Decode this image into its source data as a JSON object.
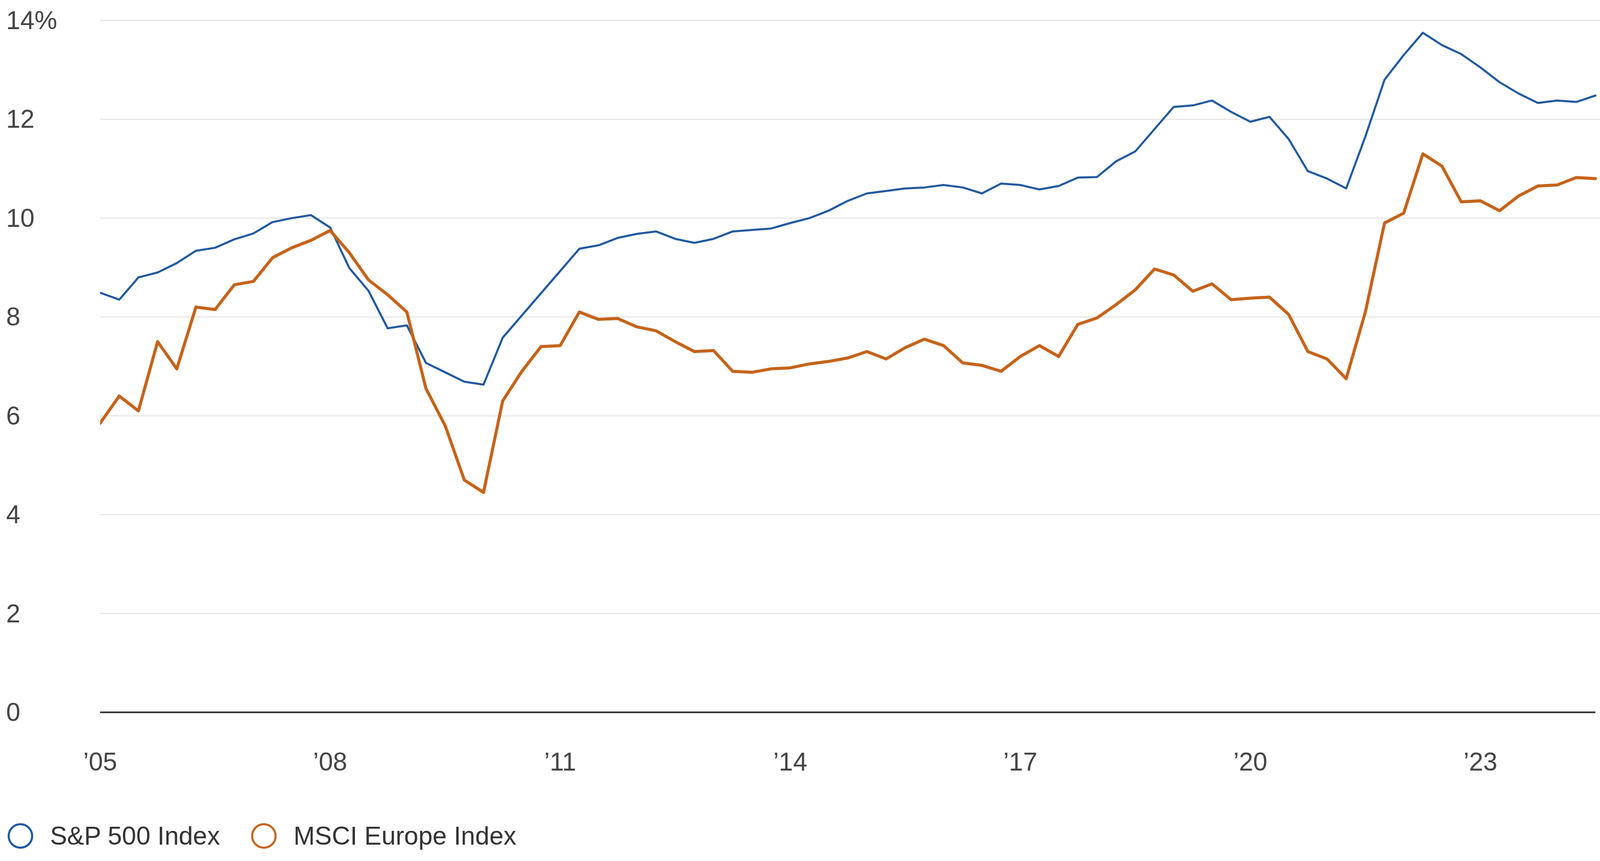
{
  "chart_data": {
    "type": "line",
    "x": [
      2005,
      2005.25,
      2005.5,
      2005.75,
      2006,
      2006.25,
      2006.5,
      2006.75,
      2007,
      2007.25,
      2007.5,
      2007.75,
      2008,
      2008.25,
      2008.5,
      2008.75,
      2009,
      2009.25,
      2009.5,
      2009.75,
      2010,
      2010.25,
      2010.5,
      2010.75,
      2011,
      2011.25,
      2011.5,
      2011.75,
      2012,
      2012.25,
      2012.5,
      2012.75,
      2013,
      2013.25,
      2013.5,
      2013.75,
      2014,
      2014.25,
      2014.5,
      2014.75,
      2015,
      2015.25,
      2015.5,
      2015.75,
      2016,
      2016.25,
      2016.5,
      2016.75,
      2017,
      2017.25,
      2017.5,
      2017.75,
      2018,
      2018.25,
      2018.5,
      2018.75,
      2019,
      2019.25,
      2019.5,
      2019.75,
      2020,
      2020.25,
      2020.5,
      2020.75,
      2021,
      2021.25,
      2021.5,
      2021.75,
      2022,
      2022.25,
      2022.5,
      2022.75,
      2023,
      2023.25,
      2023.5,
      2023.75,
      2024,
      2024.25,
      2024.5
    ],
    "series": [
      {
        "name": "S&P 500 Index",
        "color": "#1f58a0",
        "values": [
          8.49,
          8.35,
          8.8,
          8.9,
          9.09,
          9.34,
          9.4,
          9.57,
          9.69,
          9.92,
          10.0,
          10.06,
          9.81,
          8.99,
          8.53,
          7.77,
          7.83,
          7.07,
          6.88,
          6.69,
          6.63,
          7.58,
          8.03,
          8.48,
          8.93,
          9.38,
          9.45,
          9.6,
          9.68,
          9.73,
          9.58,
          9.5,
          9.58,
          9.73,
          9.76,
          9.79,
          9.9,
          10.0,
          10.15,
          10.35,
          10.5,
          10.55,
          10.6,
          10.62,
          10.67,
          10.62,
          10.5,
          10.7,
          10.67,
          10.58,
          10.65,
          10.82,
          10.83,
          11.15,
          11.35,
          11.8,
          12.25,
          12.28,
          12.38,
          12.15,
          11.95,
          12.05,
          11.6,
          10.95,
          10.8,
          10.6,
          11.65,
          12.8,
          13.3,
          13.75,
          13.5,
          13.32,
          13.05,
          12.75,
          12.52,
          12.33,
          12.38,
          12.35,
          12.48
        ]
      },
      {
        "name": "MSCI Europe Index",
        "color": "#c5631a",
        "values": [
          5.85,
          6.4,
          6.1,
          7.5,
          6.95,
          8.2,
          8.15,
          8.65,
          8.72,
          9.2,
          9.4,
          9.55,
          9.75,
          9.3,
          8.75,
          8.45,
          8.1,
          6.55,
          5.8,
          4.7,
          4.45,
          6.3,
          6.9,
          7.4,
          7.42,
          8.1,
          7.95,
          7.97,
          7.8,
          7.72,
          7.5,
          7.3,
          7.32,
          6.9,
          6.88,
          6.95,
          6.97,
          7.05,
          7.1,
          7.17,
          7.3,
          7.15,
          7.38,
          7.55,
          7.42,
          7.07,
          7.02,
          6.9,
          7.2,
          7.42,
          7.2,
          7.85,
          7.98,
          8.25,
          8.55,
          8.97,
          8.85,
          8.52,
          8.67,
          8.35,
          8.38,
          8.4,
          8.05,
          7.3,
          7.15,
          6.75,
          8.1,
          9.9,
          10.1,
          11.3,
          11.05,
          10.33,
          10.35,
          10.15,
          10.45,
          10.65,
          10.67,
          10.82,
          10.8
        ]
      }
    ],
    "xlim": [
      2005,
      2024.5
    ],
    "xticks": [
      {
        "value": 2005,
        "label": "’05"
      },
      {
        "value": 2008,
        "label": "’08"
      },
      {
        "value": 2011,
        "label": "’11"
      },
      {
        "value": 2014,
        "label": "’14"
      },
      {
        "value": 2017,
        "label": "’17"
      },
      {
        "value": 2020,
        "label": "’20"
      },
      {
        "value": 2023,
        "label": "’23"
      }
    ],
    "ylim": [
      0,
      14
    ],
    "yticks": [
      0,
      2,
      4,
      6,
      8,
      10,
      12,
      {
        "value": 14,
        "label": "14%"
      }
    ],
    "grid": true,
    "legend": "bottom-left"
  }
}
